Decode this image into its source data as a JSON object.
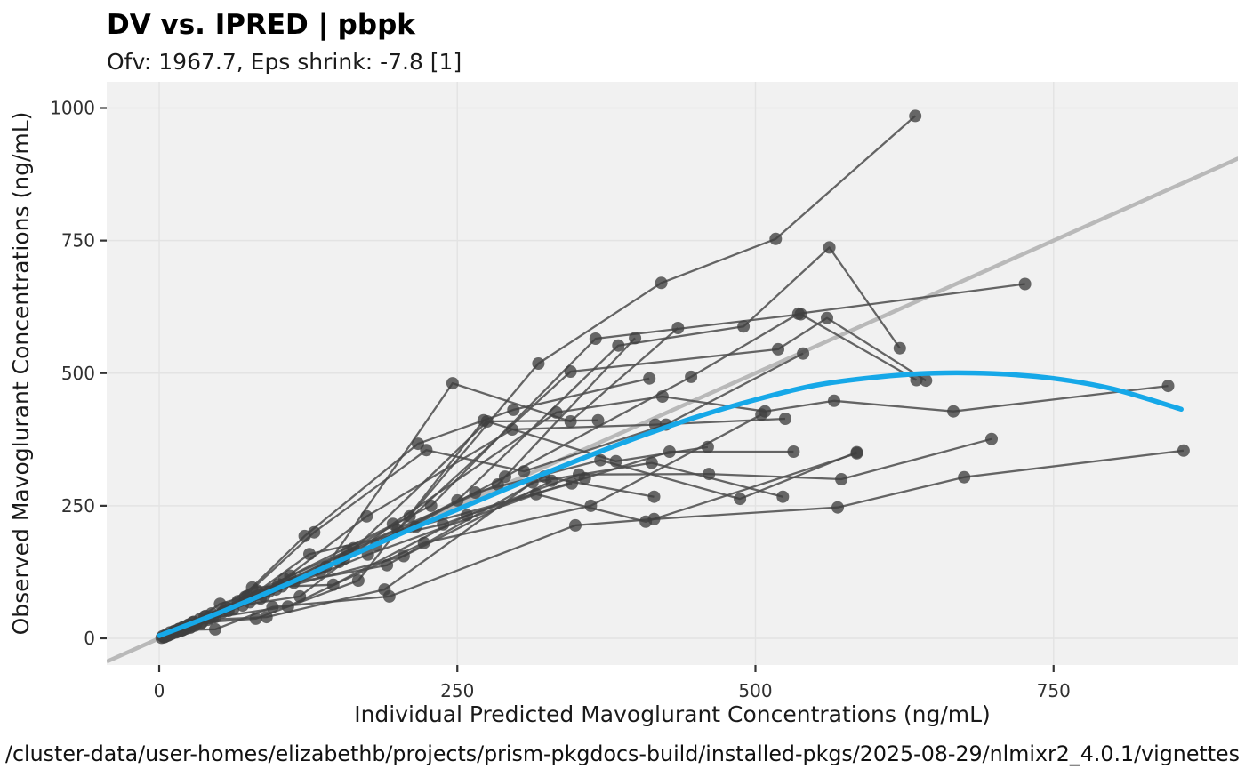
{
  "header": {
    "title": "DV vs. IPRED | pbpk",
    "subtitle": "Ofv: 1967.7, Eps shrink: -7.8 [1]"
  },
  "footer": {
    "path": "/cluster-data/user-homes/elizabethb/projects/prism-pkgdocs-build/installed-pkgs/2025-08-29/nlmixr2_4.0.1/vignettes"
  },
  "colors": {
    "panel_bg": "#f1f1f1",
    "gridline": "#e3e3e3",
    "identity": "#b9b9b9",
    "profile_line": "#4b4b4b",
    "point": "#3f3f3f",
    "smooth": "#16a8e8",
    "tick": "#333333"
  },
  "chart_data": {
    "type": "scatter",
    "title": "DV vs. IPRED | pbpk",
    "subtitle": "Ofv: 1967.7, Eps shrink: -7.8 [1]",
    "xlabel": "Individual Predicted Mavoglurant Concentrations (ng/mL)",
    "ylabel": "Observed Mavoglurant Concentrations (ng/mL)",
    "xlim": [
      -44,
      905
    ],
    "ylim": [
      -50,
      1049
    ],
    "xticks": [
      0,
      250,
      500,
      750
    ],
    "yticks": [
      0,
      250,
      500,
      750,
      1000
    ],
    "grid": "major-only",
    "legend": "none",
    "identity_line": {
      "slope": 1,
      "intercept": 0
    },
    "smooth": {
      "label": "loess smooth",
      "x": [
        0,
        50,
        100,
        150,
        200,
        250,
        300,
        350,
        400,
        450,
        500,
        550,
        600,
        650,
        700,
        750,
        800,
        857
      ],
      "y": [
        5,
        48,
        95,
        145,
        195,
        243,
        290,
        335,
        378,
        417,
        450,
        477,
        492,
        500,
        499,
        490,
        470,
        432
      ]
    },
    "series_note": "individual subject DV-vs-IPRED trajectories connected by lines",
    "profiles": [
      [
        [
          2,
          1
        ],
        [
          8,
          6
        ],
        [
          21,
          22
        ],
        [
          45,
          40
        ],
        [
          92,
          88
        ],
        [
          158,
          165
        ],
        [
          210,
          230
        ],
        [
          318,
          518
        ],
        [
          421,
          670
        ],
        [
          517,
          753
        ],
        [
          634,
          985
        ]
      ],
      [
        [
          3,
          4
        ],
        [
          13,
          14
        ],
        [
          34,
          36
        ],
        [
          70,
          62
        ],
        [
          135,
          125
        ],
        [
          250,
          260
        ],
        [
          385,
          552
        ],
        [
          490,
          588
        ],
        [
          562,
          737
        ],
        [
          621,
          547
        ]
      ],
      [
        [
          5,
          3
        ],
        [
          15,
          12
        ],
        [
          39,
          42
        ],
        [
          85,
          75
        ],
        [
          182,
          175
        ],
        [
          290,
          305
        ],
        [
          446,
          493
        ],
        [
          536,
          612
        ],
        [
          726,
          668
        ]
      ],
      [
        [
          6,
          7
        ],
        [
          17,
          18
        ],
        [
          44,
          47
        ],
        [
          100,
          102
        ],
        [
          200,
          205
        ],
        [
          345,
          503
        ],
        [
          519,
          545
        ],
        [
          560,
          604
        ],
        [
          643,
          486
        ]
      ],
      [
        [
          9,
          11
        ],
        [
          23,
          19
        ],
        [
          53,
          49
        ],
        [
          110,
          118
        ],
        [
          228,
          250
        ],
        [
          366,
          565
        ],
        [
          538,
          611
        ],
        [
          635,
          487
        ]
      ],
      [
        [
          11,
          9
        ],
        [
          27,
          22
        ],
        [
          56,
          58
        ],
        [
          118,
          79
        ],
        [
          196,
          216
        ],
        [
          333,
          426
        ],
        [
          422,
          456
        ],
        [
          508,
          428
        ],
        [
          566,
          448
        ],
        [
          666,
          428
        ],
        [
          846,
          476
        ]
      ],
      [
        [
          4,
          2
        ],
        [
          19,
          15
        ],
        [
          47,
          40
        ],
        [
          105,
          112
        ],
        [
          174,
          230
        ],
        [
          296,
          394
        ],
        [
          416,
          403
        ],
        [
          525,
          414
        ]
      ],
      [
        [
          7,
          5
        ],
        [
          25,
          26
        ],
        [
          62,
          55
        ],
        [
          126,
          159
        ],
        [
          238,
          215
        ],
        [
          352,
          309
        ],
        [
          461,
          310
        ],
        [
          572,
          300
        ],
        [
          698,
          376
        ]
      ],
      [
        [
          10,
          8
        ],
        [
          29,
          31
        ],
        [
          74,
          80
        ],
        [
          151,
          144
        ],
        [
          265,
          275
        ],
        [
          370,
          336
        ],
        [
          487,
          263
        ],
        [
          585,
          351
        ]
      ],
      [
        [
          12,
          13
        ],
        [
          31,
          27
        ],
        [
          78,
          96
        ],
        [
          146,
          101
        ],
        [
          258,
          232
        ],
        [
          357,
          302
        ],
        [
          428,
          352
        ],
        [
          532,
          352
        ]
      ],
      [
        [
          14,
          11
        ],
        [
          36,
          30
        ],
        [
          81,
          37
        ],
        [
          167,
          109
        ],
        [
          272,
          411
        ],
        [
          383,
          334
        ],
        [
          460,
          361
        ]
      ],
      [
        [
          16,
          17
        ],
        [
          41,
          35
        ],
        [
          90,
          40
        ],
        [
          189,
          92
        ],
        [
          313,
          294
        ],
        [
          413,
          331
        ],
        [
          523,
          267
        ]
      ],
      [
        [
          18,
          14
        ],
        [
          51,
          65
        ],
        [
          113,
          105
        ],
        [
          191,
          138
        ],
        [
          323,
          305
        ],
        [
          415,
          267
        ]
      ],
      [
        [
          20,
          21
        ],
        [
          66,
          70
        ],
        [
          122,
          193
        ],
        [
          217,
          367
        ],
        [
          297,
          431
        ],
        [
          411,
          490
        ]
      ],
      [
        [
          22,
          18
        ],
        [
          58,
          52
        ],
        [
          130,
          200
        ],
        [
          224,
          355
        ],
        [
          306,
          315
        ],
        [
          425,
          403
        ],
        [
          540,
          537
        ]
      ],
      [
        [
          24,
          25
        ],
        [
          72,
          78
        ],
        [
          140,
          135
        ],
        [
          246,
          481
        ],
        [
          345,
          409
        ],
        [
          435,
          585
        ]
      ],
      [
        [
          26,
          20
        ],
        [
          76,
          68
        ],
        [
          155,
          150
        ],
        [
          275,
          409
        ],
        [
          368,
          411
        ]
      ],
      [
        [
          28,
          30
        ],
        [
          82,
          90
        ],
        [
          163,
          170
        ],
        [
          284,
          290
        ],
        [
          399,
          566
        ]
      ],
      [
        [
          30,
          24
        ],
        [
          88,
          80
        ],
        [
          175,
          158
        ],
        [
          316,
          272
        ],
        [
          408,
          220
        ],
        [
          585,
          349
        ]
      ],
      [
        [
          5,
          4
        ],
        [
          20,
          16
        ],
        [
          47,
          17
        ],
        [
          95,
          59
        ],
        [
          193,
          79
        ],
        [
          349,
          213
        ],
        [
          415,
          225
        ],
        [
          569,
          247
        ],
        [
          675,
          304
        ],
        [
          859,
          354
        ]
      ],
      [
        [
          35,
          28
        ],
        [
          98,
          92
        ],
        [
          205,
          155
        ],
        [
          329,
          297
        ]
      ],
      [
        [
          38,
          41
        ],
        [
          103,
          98
        ],
        [
          215,
          210
        ],
        [
          346,
          292
        ]
      ],
      [
        [
          42,
          38
        ],
        [
          108,
          60
        ],
        [
          222,
          180
        ],
        [
          362,
          250
        ],
        [
          505,
          422
        ]
      ]
    ]
  }
}
